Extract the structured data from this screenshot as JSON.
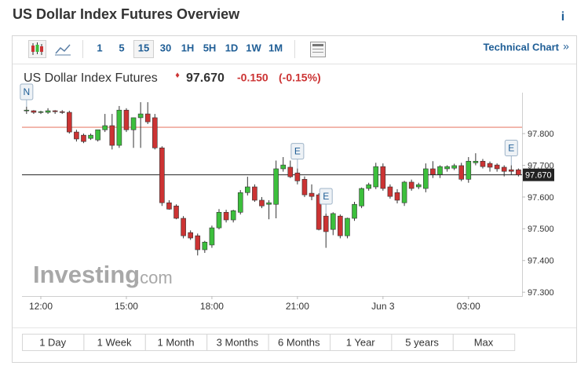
{
  "header": {
    "title": "US Dollar Index Futures Overview",
    "info": "i"
  },
  "toolbar": {
    "intervals": [
      "1",
      "5",
      "15",
      "30",
      "1H",
      "5H",
      "1D",
      "1W",
      "1M"
    ],
    "selected": "15",
    "link": "Technical Chart",
    "link_arrow": "»"
  },
  "chart_data": {
    "type": "candlestick",
    "name": "US Dollar Index Futures",
    "change": "-0.150",
    "change_percent": "(-0.15%)",
    "last": {
      "value": 97.67,
      "label": "97.670"
    },
    "reference_line": 97.82,
    "up_color": "#3cbf3c",
    "down_color": "#cc3333",
    "reference_color": "#e8826f",
    "categories": [
      null,
      null,
      "12:00",
      null,
      null,
      null,
      null,
      null,
      null,
      null,
      null,
      null,
      null,
      null,
      "15:00",
      null,
      null,
      null,
      null,
      null,
      null,
      null,
      null,
      null,
      null,
      null,
      "18:00",
      null,
      null,
      null,
      null,
      null,
      null,
      null,
      null,
      null,
      null,
      null,
      "21:00",
      null,
      null,
      null,
      null,
      null,
      null,
      null,
      null,
      null,
      null,
      null,
      "Jun 3",
      null,
      null,
      null,
      null,
      null,
      null,
      null,
      null,
      null,
      null,
      null,
      "03:00",
      null,
      null,
      null,
      null,
      null,
      null,
      null
    ],
    "open": [
      97.872,
      97.872,
      97.867,
      97.867,
      97.872,
      97.869,
      97.867,
      97.805,
      97.795,
      97.785,
      97.78,
      97.812,
      97.825,
      97.763,
      97.874,
      97.812,
      97.85,
      97.862,
      97.85,
      97.755,
      97.582,
      97.572,
      97.533,
      97.488,
      97.478,
      97.434,
      97.449,
      97.503,
      97.552,
      97.528,
      97.552,
      97.614,
      97.632,
      97.59,
      97.577,
      97.577,
      97.689,
      97.694,
      97.676,
      97.656,
      97.612,
      97.607,
      97.54,
      97.498,
      97.54,
      97.478,
      97.533,
      97.572,
      97.627,
      97.632,
      97.696,
      97.632,
      97.614,
      97.582,
      97.647,
      97.632,
      97.627,
      97.689,
      97.671,
      97.689,
      97.691,
      97.699,
      97.656,
      97.708,
      97.713,
      97.706,
      97.701,
      97.694,
      97.686,
      97.686
    ],
    "high": [
      97.885,
      97.874,
      97.872,
      97.88,
      97.874,
      97.874,
      97.872,
      97.812,
      97.8,
      97.8,
      97.812,
      97.862,
      97.862,
      97.887,
      97.88,
      97.85,
      97.899,
      97.899,
      97.862,
      97.76,
      97.59,
      97.577,
      97.54,
      97.495,
      97.485,
      97.462,
      97.51,
      97.562,
      97.56,
      97.56,
      97.622,
      97.664,
      97.64,
      97.6,
      97.59,
      97.715,
      97.726,
      97.715,
      97.69,
      97.665,
      97.64,
      97.612,
      97.548,
      97.552,
      97.545,
      97.535,
      97.585,
      97.63,
      97.645,
      97.708,
      97.706,
      97.64,
      97.625,
      97.651,
      97.655,
      97.645,
      97.706,
      97.713,
      97.7,
      97.7,
      97.705,
      97.708,
      97.726,
      97.738,
      97.72,
      97.712,
      97.706,
      97.7,
      97.7,
      97.69
    ],
    "low": [
      97.862,
      97.862,
      97.862,
      97.862,
      97.862,
      97.862,
      97.8,
      97.775,
      97.77,
      97.78,
      97.775,
      97.805,
      97.75,
      97.755,
      97.805,
      97.755,
      97.755,
      97.83,
      97.75,
      97.572,
      97.56,
      97.53,
      97.47,
      97.465,
      97.416,
      97.424,
      97.44,
      97.498,
      97.52,
      97.52,
      97.545,
      97.605,
      97.585,
      97.565,
      97.53,
      97.533,
      97.68,
      97.66,
      97.64,
      97.6,
      97.59,
      97.495,
      97.44,
      97.48,
      97.47,
      97.47,
      97.525,
      97.565,
      97.62,
      97.625,
      97.62,
      97.595,
      97.58,
      97.572,
      97.62,
      97.625,
      97.615,
      97.66,
      97.66,
      97.68,
      97.685,
      97.65,
      97.645,
      97.7,
      97.69,
      97.68,
      97.68,
      97.665,
      97.67,
      97.665
    ],
    "close": [
      97.874,
      97.867,
      97.869,
      97.872,
      97.869,
      97.867,
      97.805,
      97.783,
      97.775,
      97.795,
      97.812,
      97.825,
      97.763,
      97.874,
      97.812,
      97.85,
      97.862,
      97.837,
      97.755,
      97.582,
      97.562,
      97.533,
      97.478,
      97.471,
      97.434,
      97.458,
      97.503,
      97.552,
      97.528,
      97.557,
      97.614,
      97.632,
      97.59,
      97.572,
      97.582,
      97.689,
      97.701,
      97.664,
      97.651,
      97.607,
      97.602,
      97.498,
      97.491,
      97.548,
      97.478,
      97.533,
      97.577,
      97.627,
      97.639,
      97.696,
      97.627,
      97.602,
      97.59,
      97.647,
      97.627,
      97.639,
      97.689,
      97.671,
      97.696,
      97.696,
      97.699,
      97.656,
      97.713,
      97.713,
      97.696,
      97.694,
      97.689,
      97.681,
      97.681,
      97.67
    ],
    "events": [
      {
        "label": "N",
        "candle": 0
      },
      {
        "label": "E",
        "candle": 38
      },
      {
        "label": "E",
        "candle": 42
      },
      {
        "label": "E",
        "candle": 68
      }
    ],
    "ylim": [
      97.288,
      97.929
    ],
    "yticks": [
      {
        "value": 97.3,
        "label": "97.300"
      },
      {
        "value": 97.4,
        "label": "97.400"
      },
      {
        "value": 97.5,
        "label": "97.500"
      },
      {
        "value": 97.6,
        "label": "97.600"
      },
      {
        "value": 97.7,
        "label": "97.700"
      },
      {
        "value": 97.8,
        "label": "97.800"
      }
    ],
    "watermark": {
      "brand": "Investing",
      "suffix": ".com"
    }
  },
  "periods": [
    "1 Day",
    "1 Week",
    "1 Month",
    "3 Months",
    "6 Months",
    "1 Year",
    "5 years",
    "Max"
  ]
}
